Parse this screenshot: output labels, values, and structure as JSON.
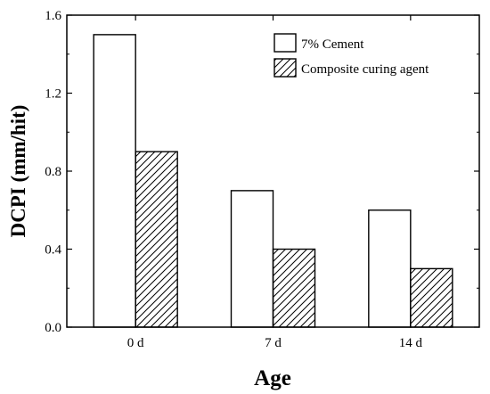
{
  "chart_data": {
    "type": "bar",
    "categories": [
      "0 d",
      "7 d",
      "14 d"
    ],
    "series": [
      {
        "name": "7% Cement",
        "values": [
          1.5,
          0.7,
          0.6
        ],
        "fill": "#ffffff",
        "pattern": "none"
      },
      {
        "name": "Composite curing agent",
        "values": [
          0.9,
          0.4,
          0.3
        ],
        "fill": "#ffffff",
        "pattern": "diagonal-hatch"
      }
    ],
    "xlabel": "Age",
    "ylabel": "DCPI (mm/hit)",
    "ylim": [
      0,
      1.6
    ],
    "yticks": [
      0.0,
      0.4,
      0.8,
      1.2,
      1.6
    ],
    "ytick_labels": [
      "0.0",
      "0.4",
      "0.8",
      "1.2",
      "1.6"
    ],
    "grid": false,
    "legend": "top-right",
    "colors": {
      "stroke": "#000000",
      "background": "#ffffff"
    }
  }
}
